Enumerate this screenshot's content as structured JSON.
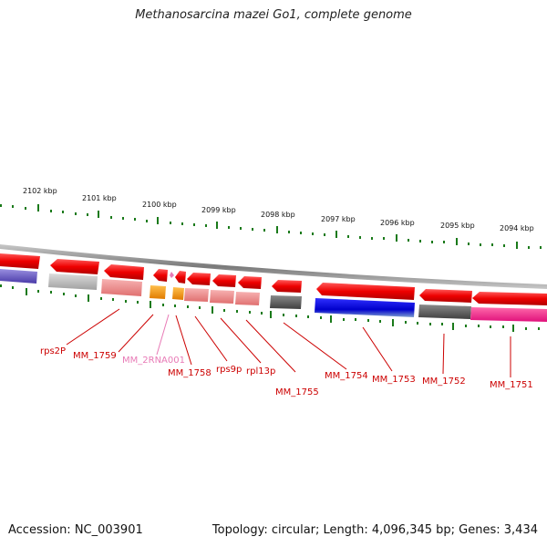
{
  "title": "Methanosarcina mazei Go1, complete genome",
  "footer": {
    "accession": "Accession: NC_003901",
    "summary": "Topology: circular; Length: 4,096,345 bp; Genes: 3,434"
  },
  "scale_ticks": [
    "2102 kbp",
    "2101 kbp",
    "2100 kbp",
    "2099 kbp",
    "2098 kbp",
    "2097 kbp",
    "2096 kbp",
    "2095 kbp",
    "2094 kbp"
  ],
  "gene_labels": [
    "rps2P",
    "MM_1759",
    "MM_2RNA001",
    "MM_1758",
    "rps9p",
    "rpl13p",
    "MM_1755",
    "MM_1754",
    "MM_1753",
    "MM_1752",
    "MM_1751"
  ],
  "colors": {
    "tick": "#1a7a1a",
    "label_red": "#cc0000",
    "label_pink": "#e87ab6",
    "backbone": "#8c8c8c",
    "gene_red": "#ee0000",
    "gene_orange": "#ff9900",
    "gene_pink_light": "#f29090",
    "gene_gray": "#b5b5b5",
    "gene_dark_gray": "#595959",
    "gene_blue": "#0000dd",
    "gene_magenta": "#ff2a8a",
    "gene_purple": "#6a5acd"
  }
}
